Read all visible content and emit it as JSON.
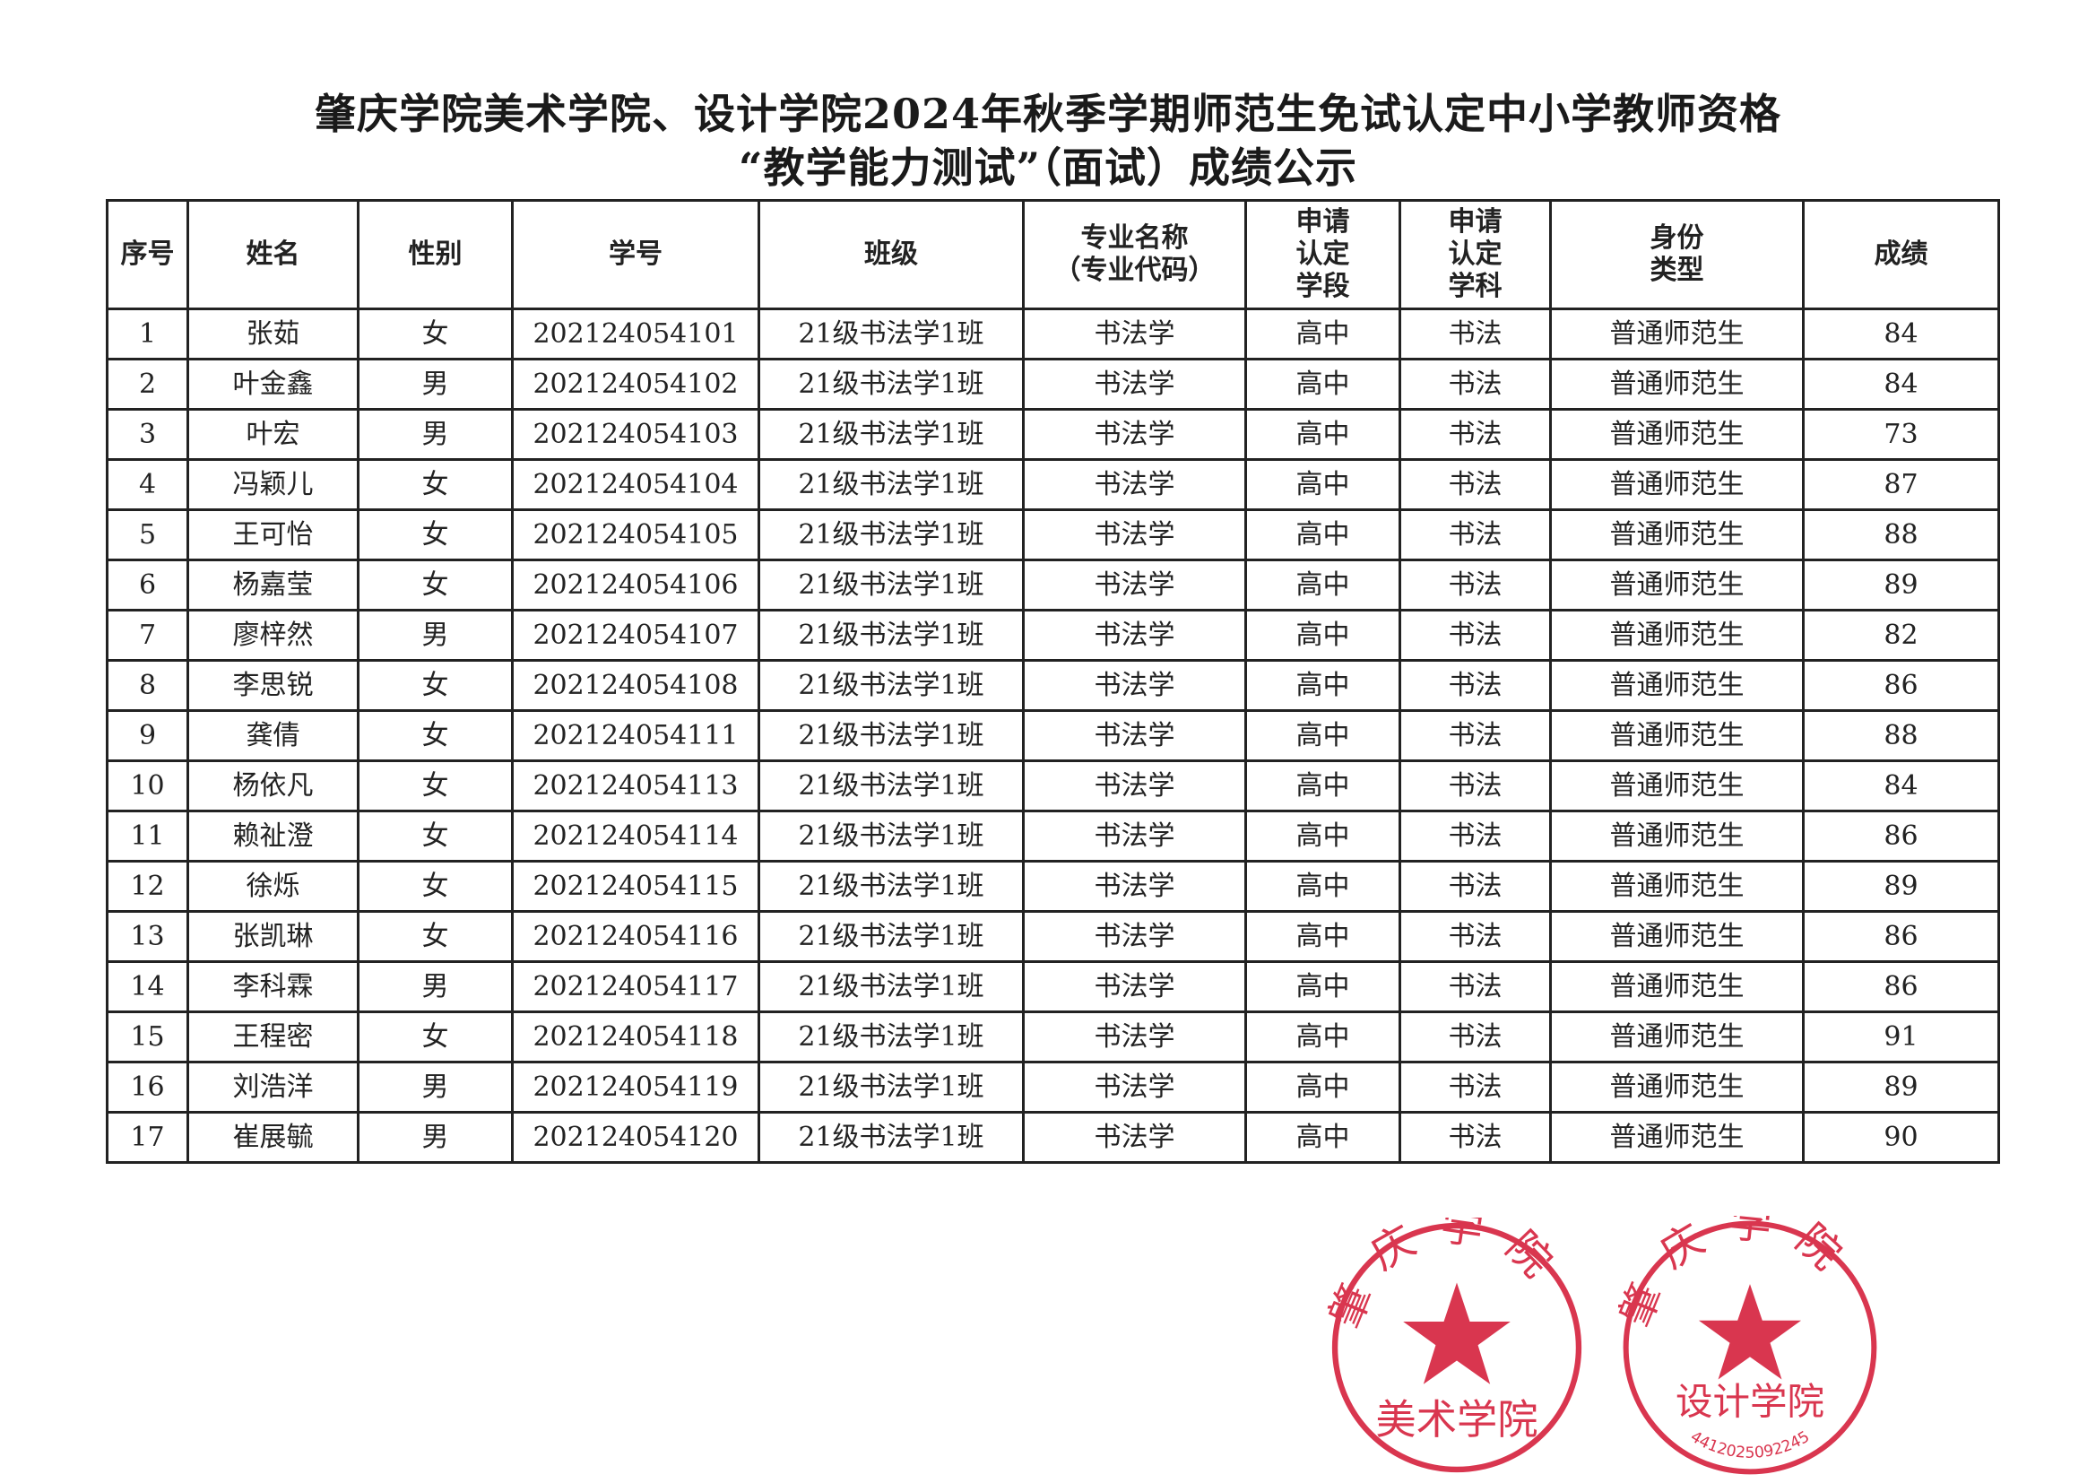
{
  "title_line1": "肇庆学院美术学院、设计学院2024年秋季学期师范生免试认定中小学教师资格",
  "title_line2": "“教学能力测试”（面试）成绩公示",
  "columns": [
    "序号",
    "姓名",
    "性别",
    "学号",
    "班级",
    "专业名称\n（专业代码）",
    "申请\n认定\n学段",
    "申请\n认定\n学科",
    "身份\n类型",
    "成绩"
  ],
  "rows": [
    [
      "1",
      "张茹",
      "女",
      "202124054101",
      "21级书法学1班",
      "书法学",
      "高中",
      "书法",
      "普通师范生",
      "84"
    ],
    [
      "2",
      "叶金鑫",
      "男",
      "202124054102",
      "21级书法学1班",
      "书法学",
      "高中",
      "书法",
      "普通师范生",
      "84"
    ],
    [
      "3",
      "叶宏",
      "男",
      "202124054103",
      "21级书法学1班",
      "书法学",
      "高中",
      "书法",
      "普通师范生",
      "73"
    ],
    [
      "4",
      "冯颖儿",
      "女",
      "202124054104",
      "21级书法学1班",
      "书法学",
      "高中",
      "书法",
      "普通师范生",
      "87"
    ],
    [
      "5",
      "王可怡",
      "女",
      "202124054105",
      "21级书法学1班",
      "书法学",
      "高中",
      "书法",
      "普通师范生",
      "88"
    ],
    [
      "6",
      "杨嘉莹",
      "女",
      "202124054106",
      "21级书法学1班",
      "书法学",
      "高中",
      "书法",
      "普通师范生",
      "89"
    ],
    [
      "7",
      "廖梓然",
      "男",
      "202124054107",
      "21级书法学1班",
      "书法学",
      "高中",
      "书法",
      "普通师范生",
      "82"
    ],
    [
      "8",
      "李思锐",
      "女",
      "202124054108",
      "21级书法学1班",
      "书法学",
      "高中",
      "书法",
      "普通师范生",
      "86"
    ],
    [
      "9",
      "龚倩",
      "女",
      "202124054111",
      "21级书法学1班",
      "书法学",
      "高中",
      "书法",
      "普通师范生",
      "88"
    ],
    [
      "10",
      "杨依凡",
      "女",
      "202124054113",
      "21级书法学1班",
      "书法学",
      "高中",
      "书法",
      "普通师范生",
      "84"
    ],
    [
      "11",
      "赖祉澄",
      "女",
      "202124054114",
      "21级书法学1班",
      "书法学",
      "高中",
      "书法",
      "普通师范生",
      "86"
    ],
    [
      "12",
      "徐烁",
      "女",
      "202124054115",
      "21级书法学1班",
      "书法学",
      "高中",
      "书法",
      "普通师范生",
      "89"
    ],
    [
      "13",
      "张凯琳",
      "女",
      "202124054116",
      "21级书法学1班",
      "书法学",
      "高中",
      "书法",
      "普通师范生",
      "86"
    ],
    [
      "14",
      "李科霖",
      "男",
      "202124054117",
      "21级书法学1班",
      "书法学",
      "高中",
      "书法",
      "普通师范生",
      "86"
    ],
    [
      "15",
      "王程密",
      "女",
      "202124054118",
      "21级书法学1班",
      "书法学",
      "高中",
      "书法",
      "普通师范生",
      "91"
    ],
    [
      "16",
      "刘浩洋",
      "男",
      "202124054119",
      "21级书法学1班",
      "书法学",
      "高中",
      "书法",
      "普通师范生",
      "89"
    ],
    [
      "17",
      "崔展毓",
      "男",
      "202124054120",
      "21级书法学1班",
      "书法学",
      "高中",
      "书法",
      "普通师范生",
      "90"
    ]
  ],
  "seals": [
    {
      "arc": "肇庆学院",
      "bottom": "美术学院"
    },
    {
      "arc": "肇庆学院",
      "bottom": "设计学院",
      "code": "4412025092245"
    }
  ],
  "seal_color": "#d9364f"
}
